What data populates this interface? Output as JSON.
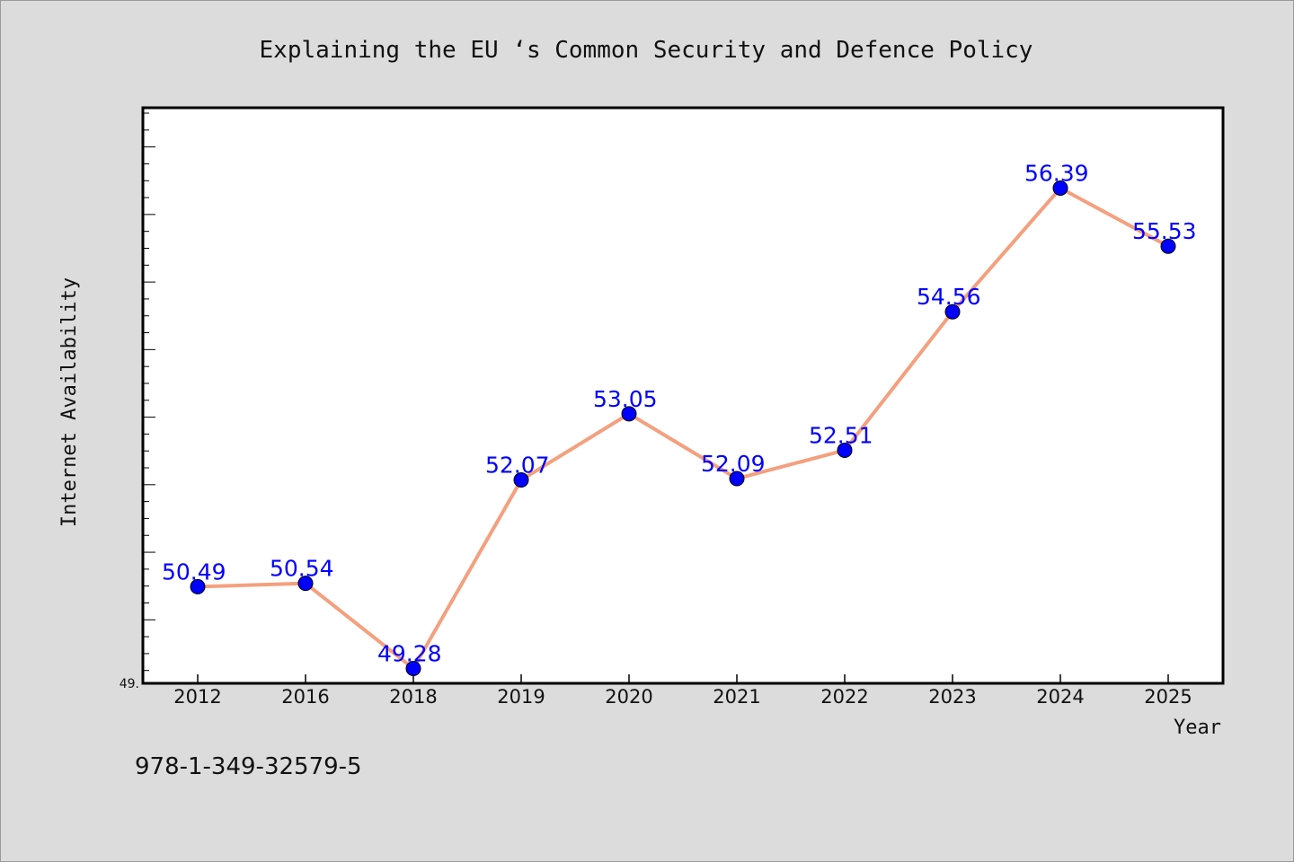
{
  "chart_data": {
    "type": "line",
    "title": "Explaining the EU ‘s Common Security and Defence Policy",
    "xlabel": "Year",
    "ylabel": "Internet Availability",
    "categories": [
      "2012",
      "2016",
      "2018",
      "2019",
      "2020",
      "2021",
      "2022",
      "2023",
      "2024",
      "2025"
    ],
    "values": [
      50.49,
      50.54,
      49.28,
      52.07,
      53.05,
      52.09,
      52.51,
      54.56,
      56.39,
      55.53
    ],
    "value_labels": [
      "50.49",
      "50.54",
      "49.28",
      "52.07",
      "53.05",
      "52.09",
      "52.51",
      "54.56",
      "56.39",
      "55.53"
    ],
    "ylim": [
      49.06,
      57.58
    ],
    "y_min_label": "49.",
    "grid": false,
    "legend": "none",
    "line_color": "#f4a07e",
    "marker_color": "#0000ff",
    "label_color": "#0000ff"
  },
  "footer": {
    "isbn": "978-1-349-32579-5"
  }
}
